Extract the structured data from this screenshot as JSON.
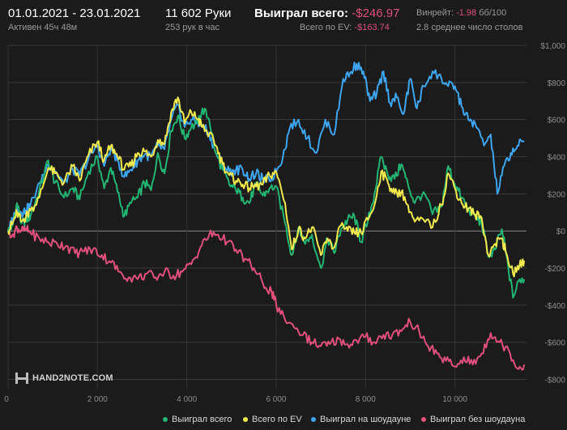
{
  "header": {
    "date_range": "01.01.2021 - 23.01.2021",
    "active": "Активен 45ч 48м",
    "hands": "11 602 Руки",
    "hands_per_hour": "253 рук в час",
    "won_label": "Выиграл всего:",
    "won_value": "-$246.97",
    "ev_label": "Всего по EV:",
    "ev_value": "-$163.74",
    "winrate_label": "Винрейт:",
    "winrate_value": "-1.98",
    "winrate_unit": "бб/100",
    "tables": "2.8 среднее число столов"
  },
  "logo_text": "HAND2NOTE.COM",
  "chart_data": {
    "type": "line",
    "xlabel": "",
    "ylabel": "",
    "xlim": [
      0,
      11602
    ],
    "ylim": [
      -850,
      1000
    ],
    "x_ticks": [
      0,
      2000,
      4000,
      6000,
      8000,
      10000
    ],
    "x_tick_labels": [
      "0",
      "2 000",
      "4 000",
      "6 000",
      "8 000",
      "10 000"
    ],
    "y_ticks": [
      1000,
      800,
      600,
      400,
      200,
      0,
      -200,
      -400,
      -600,
      -800
    ],
    "y_tick_labels": [
      "$1,000",
      "$800",
      "$600",
      "$400",
      "$200",
      "$0",
      "-$200",
      "-$400",
      "-$600",
      "-$800"
    ],
    "grid": true,
    "series": [
      {
        "name": "Выиграл всего",
        "color": "#22b573",
        "x": [
          0,
          100,
          200,
          300,
          400,
          500,
          700,
          900,
          1050,
          1250,
          1450,
          1600,
          1800,
          2000,
          2150,
          2300,
          2450,
          2600,
          2750,
          2900,
          3050,
          3200,
          3350,
          3500,
          3650,
          3800,
          3950,
          4100,
          4250,
          4350,
          4500,
          4650,
          4800,
          4950,
          5100,
          5250,
          5400,
          5550,
          5700,
          5850,
          6000,
          6200,
          6350,
          6500,
          6650,
          6800,
          7000,
          7150,
          7300,
          7450,
          7600,
          7750,
          7900,
          8050,
          8200,
          8350,
          8500,
          8650,
          8800,
          8950,
          9100,
          9300,
          9500,
          9700,
          9850,
          10000,
          10150,
          10300,
          10450,
          10600,
          10750,
          10900,
          11050,
          11150,
          11300,
          11450,
          11550
        ],
        "values": [
          0,
          30,
          150,
          40,
          60,
          80,
          220,
          380,
          260,
          180,
          230,
          170,
          320,
          400,
          230,
          340,
          210,
          80,
          150,
          180,
          260,
          220,
          420,
          310,
          540,
          620,
          500,
          560,
          580,
          660,
          600,
          420,
          330,
          250,
          220,
          180,
          150,
          260,
          190,
          230,
          240,
          40,
          -130,
          20,
          -70,
          -20,
          -200,
          -40,
          -120,
          10,
          60,
          80,
          -60,
          50,
          200,
          400,
          300,
          280,
          360,
          250,
          150,
          210,
          90,
          130,
          350,
          250,
          180,
          120,
          80,
          40,
          -140,
          -100,
          10,
          -130,
          -360,
          -260,
          -260
        ]
      },
      {
        "name": "Всего по EV",
        "color": "#f3ea4d",
        "x": [
          0,
          100,
          200,
          300,
          400,
          500,
          700,
          900,
          1050,
          1250,
          1450,
          1600,
          1800,
          2000,
          2150,
          2300,
          2450,
          2600,
          2750,
          2900,
          3050,
          3200,
          3350,
          3500,
          3650,
          3800,
          3950,
          4100,
          4250,
          4350,
          4500,
          4650,
          4800,
          4950,
          5100,
          5250,
          5400,
          5550,
          5700,
          5850,
          6000,
          6200,
          6350,
          6500,
          6650,
          6800,
          7000,
          7150,
          7300,
          7450,
          7600,
          7750,
          7900,
          8050,
          8200,
          8350,
          8500,
          8650,
          8800,
          8950,
          9100,
          9300,
          9500,
          9700,
          9850,
          10000,
          10150,
          10300,
          10450,
          10600,
          10750,
          10900,
          11050,
          11150,
          11300,
          11450,
          11550
        ],
        "values": [
          0,
          40,
          100,
          50,
          80,
          110,
          180,
          340,
          310,
          260,
          350,
          270,
          410,
          480,
          380,
          460,
          400,
          330,
          350,
          420,
          430,
          400,
          490,
          470,
          640,
          720,
          580,
          640,
          600,
          560,
          520,
          460,
          360,
          300,
          270,
          250,
          230,
          240,
          250,
          300,
          320,
          150,
          -100,
          10,
          -40,
          20,
          -130,
          -40,
          -90,
          30,
          0,
          -10,
          -10,
          60,
          140,
          320,
          260,
          200,
          210,
          140,
          50,
          60,
          20,
          140,
          310,
          230,
          150,
          120,
          90,
          70,
          -130,
          -70,
          -40,
          -120,
          -230,
          -180,
          -160
        ]
      },
      {
        "name": "Выиграл на шоудауне",
        "color": "#3ea5f0",
        "x": [
          0,
          100,
          200,
          300,
          400,
          500,
          700,
          900,
          1050,
          1250,
          1450,
          1600,
          1800,
          2000,
          2150,
          2300,
          2450,
          2600,
          2750,
          2900,
          3050,
          3200,
          3350,
          3500,
          3650,
          3800,
          3950,
          4100,
          4250,
          4350,
          4500,
          4650,
          4800,
          4950,
          5100,
          5250,
          5400,
          5550,
          5700,
          5850,
          6000,
          6150,
          6300,
          6500,
          6700,
          6900,
          7100,
          7300,
          7500,
          7650,
          7800,
          7950,
          8100,
          8250,
          8400,
          8550,
          8700,
          8850,
          9000,
          9150,
          9300,
          9500,
          9700,
          9850,
          10000,
          10150,
          10300,
          10450,
          10650,
          10800,
          10950,
          11100,
          11250,
          11400,
          11550
        ],
        "values": [
          0,
          60,
          120,
          100,
          110,
          140,
          260,
          360,
          320,
          260,
          330,
          300,
          390,
          460,
          350,
          450,
          380,
          290,
          330,
          380,
          410,
          400,
          460,
          440,
          600,
          680,
          560,
          600,
          580,
          570,
          530,
          420,
          360,
          320,
          330,
          330,
          280,
          310,
          280,
          270,
          320,
          400,
          550,
          600,
          500,
          420,
          600,
          520,
          820,
          850,
          900,
          860,
          700,
          740,
          860,
          690,
          720,
          630,
          820,
          660,
          780,
          860,
          820,
          780,
          780,
          670,
          600,
          580,
          460,
          520,
          200,
          350,
          420,
          460,
          480
        ]
      },
      {
        "name": "Выиграл без шоудауна",
        "color": "#e0507a",
        "x": [
          0,
          100,
          200,
          300,
          400,
          500,
          700,
          900,
          1100,
          1300,
          1500,
          1700,
          1900,
          2100,
          2300,
          2500,
          2700,
          2900,
          3100,
          3300,
          3500,
          3700,
          3900,
          4100,
          4300,
          4500,
          4700,
          4900,
          5100,
          5300,
          5500,
          5700,
          5900,
          6000,
          6200,
          6400,
          6600,
          6800,
          7000,
          7200,
          7400,
          7600,
          7800,
          8000,
          8200,
          8400,
          8600,
          8800,
          9000,
          9200,
          9400,
          9600,
          9800,
          10000,
          10200,
          10400,
          10600,
          10800,
          11000,
          11200,
          11400,
          11550
        ],
        "values": [
          0,
          -20,
          20,
          0,
          10,
          -10,
          -40,
          -60,
          -70,
          -80,
          -120,
          -110,
          -100,
          -130,
          -170,
          -220,
          -250,
          -260,
          -230,
          -250,
          -220,
          -240,
          -220,
          -180,
          -90,
          -20,
          -20,
          -60,
          -100,
          -150,
          -200,
          -280,
          -330,
          -400,
          -480,
          -520,
          -560,
          -600,
          -620,
          -610,
          -580,
          -610,
          -590,
          -570,
          -600,
          -560,
          -560,
          -540,
          -490,
          -540,
          -620,
          -660,
          -700,
          -730,
          -680,
          -720,
          -660,
          -550,
          -600,
          -640,
          -740,
          -720
        ]
      }
    ]
  }
}
